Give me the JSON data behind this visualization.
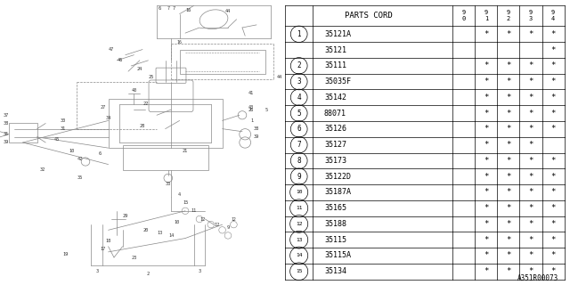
{
  "footer": "A351R00073",
  "rows": [
    {
      "num": "1",
      "parts": [
        "35121A",
        "35121"
      ],
      "marks": [
        [
          "",
          "*",
          "*",
          "*",
          "*"
        ],
        [
          "",
          "",
          "",
          "",
          "*"
        ]
      ]
    },
    {
      "num": "2",
      "parts": [
        "35111"
      ],
      "marks": [
        [
          "",
          "*",
          "*",
          "*",
          "*"
        ]
      ]
    },
    {
      "num": "3",
      "parts": [
        "35035F"
      ],
      "marks": [
        [
          "",
          "*",
          "*",
          "*",
          "*"
        ]
      ]
    },
    {
      "num": "4",
      "parts": [
        "35142"
      ],
      "marks": [
        [
          "",
          "*",
          "*",
          "*",
          "*"
        ]
      ]
    },
    {
      "num": "5",
      "parts": [
        "88071"
      ],
      "marks": [
        [
          "",
          "*",
          "*",
          "*",
          "*"
        ]
      ]
    },
    {
      "num": "6",
      "parts": [
        "35126"
      ],
      "marks": [
        [
          "",
          "*",
          "*",
          "*",
          "*"
        ]
      ]
    },
    {
      "num": "7",
      "parts": [
        "35127"
      ],
      "marks": [
        [
          "",
          "*",
          "*",
          "*",
          ""
        ]
      ]
    },
    {
      "num": "8",
      "parts": [
        "35173"
      ],
      "marks": [
        [
          "",
          "*",
          "*",
          "*",
          "*"
        ]
      ]
    },
    {
      "num": "9",
      "parts": [
        "35122D"
      ],
      "marks": [
        [
          "",
          "*",
          "*",
          "*",
          "*"
        ]
      ]
    },
    {
      "num": "10",
      "parts": [
        "35187A"
      ],
      "marks": [
        [
          "",
          "*",
          "*",
          "*",
          "*"
        ]
      ]
    },
    {
      "num": "11",
      "parts": [
        "35165"
      ],
      "marks": [
        [
          "",
          "*",
          "*",
          "*",
          "*"
        ]
      ]
    },
    {
      "num": "12",
      "parts": [
        "35188"
      ],
      "marks": [
        [
          "",
          "*",
          "*",
          "*",
          "*"
        ]
      ]
    },
    {
      "num": "13",
      "parts": [
        "35115"
      ],
      "marks": [
        [
          "",
          "*",
          "*",
          "*",
          "*"
        ]
      ]
    },
    {
      "num": "14",
      "parts": [
        "35115A"
      ],
      "marks": [
        [
          "",
          "*",
          "*",
          "*",
          "*"
        ]
      ]
    },
    {
      "num": "15",
      "parts": [
        "35134"
      ],
      "marks": [
        [
          "",
          "*",
          "*",
          "*",
          "*"
        ]
      ]
    }
  ],
  "bg_color": "#ffffff",
  "line_color": "#000000",
  "text_color": "#000000",
  "years": [
    "9\n0",
    "9\n1",
    "9\n2",
    "9\n3",
    "9\n4"
  ]
}
